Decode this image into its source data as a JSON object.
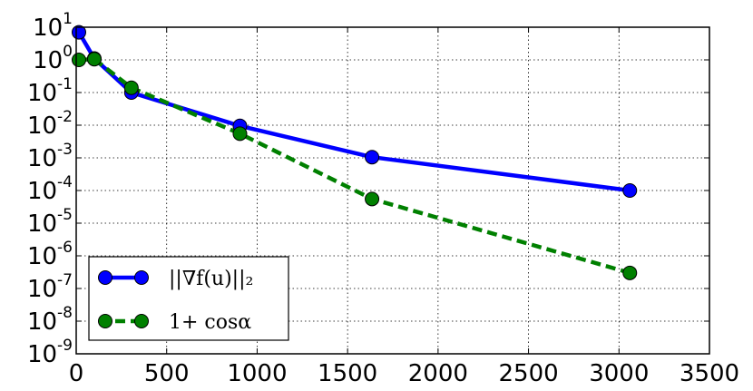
{
  "chart_data": {
    "type": "line",
    "title": "",
    "xlabel": "",
    "ylabel": "",
    "xlim": [
      0,
      3500
    ],
    "ylim": [
      1e-09,
      10
    ],
    "yscale": "log",
    "grid": true,
    "legend_position": "bottom-left",
    "x_ticks": [
      {
        "value": 0,
        "label": "0"
      },
      {
        "value": 500,
        "label": "500"
      },
      {
        "value": 1000,
        "label": "1000"
      },
      {
        "value": 1500,
        "label": "1500"
      },
      {
        "value": 2000,
        "label": "2000"
      },
      {
        "value": 2500,
        "label": "2500"
      },
      {
        "value": 3000,
        "label": "3000"
      },
      {
        "value": 3500,
        "label": "3500"
      }
    ],
    "y_ticks": [
      {
        "value": 10,
        "base": "10",
        "exp": "1"
      },
      {
        "value": 1,
        "base": "10",
        "exp": "0"
      },
      {
        "value": 0.1,
        "base": "10",
        "exp": "-1"
      },
      {
        "value": 0.01,
        "base": "10",
        "exp": "-2"
      },
      {
        "value": 0.001,
        "base": "10",
        "exp": "-3"
      },
      {
        "value": 0.0001,
        "base": "10",
        "exp": "-4"
      },
      {
        "value": 1e-05,
        "base": "10",
        "exp": "-5"
      },
      {
        "value": 1e-06,
        "base": "10",
        "exp": "-6"
      },
      {
        "value": 1e-07,
        "base": "10",
        "exp": "-7"
      },
      {
        "value": 1e-08,
        "base": "10",
        "exp": "-8"
      },
      {
        "value": 1e-09,
        "base": "10",
        "exp": "-9"
      }
    ],
    "series": [
      {
        "name": "||∇f(u)||₂",
        "color": "#0000ff",
        "marker_color": "#0000ff",
        "line_style": "solid",
        "points": [
          {
            "x": 15,
            "y": 7
          },
          {
            "x": 100,
            "y": 1.1
          },
          {
            "x": 305,
            "y": 0.1
          },
          {
            "x": 905,
            "y": 0.0095
          },
          {
            "x": 1635,
            "y": 0.00105
          },
          {
            "x": 3060,
            "y": 0.0001
          }
        ]
      },
      {
        "name": "1+ cosα",
        "color": "#008000",
        "marker_color": "#008000",
        "line_style": "dashed",
        "points": [
          {
            "x": 15,
            "y": 1
          },
          {
            "x": 100,
            "y": 1.05
          },
          {
            "x": 305,
            "y": 0.14
          },
          {
            "x": 905,
            "y": 0.0055
          },
          {
            "x": 1635,
            "y": 5.5e-05
          },
          {
            "x": 3060,
            "y": 3e-07
          }
        ]
      }
    ]
  }
}
